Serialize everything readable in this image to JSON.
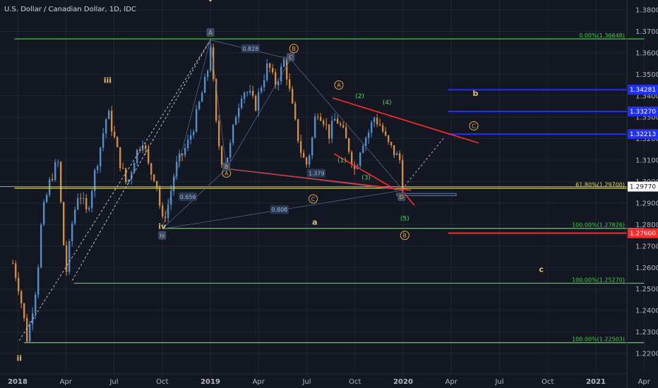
{
  "header": {
    "title": "U.S. Dollar / Canadian Dollar, 1D, IDC"
  },
  "colors": {
    "background": "#131722",
    "up": "#4e8fd0",
    "down": "#d98a3a",
    "green": "#3fcf3f",
    "yellow": "#e7e03a",
    "red": "#ff2b2b",
    "blue": "#1f2fff",
    "grid": "#1f2433"
  },
  "chart_data": {
    "type": "line",
    "title": "U.S. Dollar / Canadian Dollar, 1D, IDC",
    "xlabel": "",
    "ylabel": "",
    "ylim": [
      1.215,
      1.385
    ],
    "y_ticks": [
      1.22,
      1.23,
      1.24,
      1.25,
      1.26,
      1.27,
      1.28,
      1.29,
      1.3,
      1.31,
      1.32,
      1.33,
      1.34,
      1.35,
      1.36,
      1.37,
      1.38
    ],
    "y_tick_labels": [
      "1.22000",
      "1.23000",
      "1.24000",
      "1.25000",
      "1.26000",
      "1.27000",
      "1.28000",
      "1.29000",
      "1.30000",
      "1.31000",
      "1.32000",
      "1.33000",
      "1.34000",
      "1.35000",
      "1.36000",
      "1.37000",
      "1.38000"
    ],
    "x_ticks": [
      {
        "m": 0,
        "label": "2018"
      },
      {
        "m": 3,
        "label": "Apr"
      },
      {
        "m": 6,
        "label": "Jul"
      },
      {
        "m": 9,
        "label": "Oct"
      },
      {
        "m": 12,
        "label": "2019"
      },
      {
        "m": 15,
        "label": "Apr"
      },
      {
        "m": 18,
        "label": "Jul"
      },
      {
        "m": 21,
        "label": "Oct"
      },
      {
        "m": 24,
        "label": "2020"
      },
      {
        "m": 27,
        "label": "Apr"
      },
      {
        "m": 30,
        "label": "Jul"
      },
      {
        "m": 33,
        "label": "Oct"
      },
      {
        "m": 36,
        "label": "2021"
      },
      {
        "m": 39,
        "label": "Apr"
      }
    ],
    "series": [
      {
        "x": [
          -0.3,
          0.1,
          0.6,
          1.2,
          1.5,
          2.0,
          2.5,
          3.0,
          3.4,
          3.8,
          4.3,
          4.8,
          5.2,
          5.6,
          5.9,
          6.3,
          6.8,
          7.3,
          7.8,
          8.2,
          8.6,
          9.0,
          9.4,
          9.8,
          10.2,
          10.6,
          11.0,
          11.4,
          11.8,
          12.0,
          12.4,
          12.8,
          13.2,
          13.6,
          14.0,
          14.4,
          14.8,
          15.2,
          15.6,
          16.0,
          16.4,
          16.6,
          16.9,
          17.3,
          17.7,
          18.0,
          18.3,
          18.6,
          19.0,
          19.4,
          19.8,
          20.2,
          20.6,
          21.0,
          21.4,
          21.8,
          22.2,
          22.6,
          23.0,
          23.4,
          23.8,
          24.0
        ],
        "values": [
          1.262,
          1.25,
          1.226,
          1.254,
          1.283,
          1.3,
          1.31,
          1.256,
          1.281,
          1.296,
          1.285,
          1.304,
          1.318,
          1.333,
          1.324,
          1.311,
          1.298,
          1.312,
          1.32,
          1.305,
          1.302,
          1.281,
          1.29,
          1.306,
          1.312,
          1.318,
          1.327,
          1.339,
          1.35,
          1.365,
          1.322,
          1.307,
          1.315,
          1.332,
          1.343,
          1.341,
          1.335,
          1.346,
          1.355,
          1.345,
          1.352,
          1.357,
          1.343,
          1.326,
          1.312,
          1.308,
          1.318,
          1.334,
          1.33,
          1.322,
          1.33,
          1.324,
          1.316,
          1.305,
          1.318,
          1.322,
          1.33,
          1.326,
          1.318,
          1.314,
          1.31,
          1.296
        ]
      }
    ],
    "fib_levels": [
      {
        "value": 1.36648,
        "label": "0.00%(1.36648)",
        "color": "#3fcf3f",
        "m0": -0.2,
        "m1": 39.0
      },
      {
        "value": 1.297,
        "label": "61.80%(1.29700)",
        "color": "#e7e03a",
        "m0": -0.2,
        "m1": 39.0
      },
      {
        "value": 1.27826,
        "label": "100.00%(1.27826)",
        "color": "#3fcf3f",
        "m0": 9.0,
        "m1": 39.0
      },
      {
        "value": 1.2527,
        "label": "100.00%(1.25270)",
        "color": "#3fcf3f",
        "m0": 3.5,
        "m1": 39.0
      },
      {
        "value": 1.22503,
        "label": "100.00%(1.22503)",
        "color": "#3fcf3f",
        "m0": 0.4,
        "m1": 39.0
      }
    ],
    "target_levels": [
      {
        "value": 1.34281,
        "label": "1.34281",
        "color": "#1f2fff",
        "m0": 26.8,
        "m1": 39.0
      },
      {
        "value": 1.3327,
        "label": "1.33270",
        "color": "#1f2fff",
        "m0": 26.8,
        "m1": 39.0
      },
      {
        "value": 1.32213,
        "label": "1.32213",
        "color": "#1f2fff",
        "m0": 26.8,
        "m1": 39.0
      },
      {
        "value": 1.276,
        "label": "1.27600",
        "color": "#ff2b2b",
        "m0": 26.8,
        "m1": 39.0
      }
    ],
    "current_price": {
      "value": 1.2977,
      "label": "1.29770"
    },
    "annotations": {
      "major_waves": [
        {
          "text": "v",
          "m": 12.0,
          "y": 1.384
        },
        {
          "text": "iii",
          "m": 5.6,
          "y": 1.346
        },
        {
          "text": "iv",
          "m": 9.0,
          "y": 1.278
        },
        {
          "text": "ii",
          "m": 0.1,
          "y": 1.2165
        },
        {
          "text": "a",
          "m": 18.5,
          "y": 1.28
        },
        {
          "text": "b",
          "m": 28.5,
          "y": 1.34
        },
        {
          "text": "c",
          "m": 32.6,
          "y": 1.258
        }
      ],
      "minor_waves": [
        {
          "text": "(1)",
          "m": 20.2,
          "y": 1.309
        },
        {
          "text": "(2)",
          "m": 21.3,
          "y": 1.339
        },
        {
          "text": "(3)",
          "m": 21.7,
          "y": 1.301
        },
        {
          "text": "(4)",
          "m": 23.0,
          "y": 1.336
        },
        {
          "text": "(5)",
          "m": 24.1,
          "y": 1.282
        }
      ],
      "circled": [
        {
          "text": "B",
          "m": 17.2,
          "y": 1.362
        },
        {
          "text": "A",
          "m": 13.0,
          "y": 1.304
        },
        {
          "text": "A",
          "m": 20.0,
          "y": 1.345
        },
        {
          "text": "C",
          "m": 18.4,
          "y": 1.292
        },
        {
          "text": "C",
          "m": 28.4,
          "y": 1.326
        },
        {
          "text": "B",
          "m": 24.1,
          "y": 1.275
        }
      ],
      "boxed": [
        {
          "text": "A",
          "m": 12.0,
          "y": 1.3695
        },
        {
          "text": "B",
          "m": 13.0,
          "y": 1.307
        },
        {
          "text": "C",
          "m": 17.0,
          "y": 1.358
        },
        {
          "text": "D",
          "m": 23.9,
          "y": 1.293
        },
        {
          "text": "iv",
          "m": 9.0,
          "y": 1.275
        }
      ],
      "ratios": [
        {
          "text": "0.828",
          "m": 14.5,
          "y": 1.362
        },
        {
          "text": "0.656",
          "m": 10.6,
          "y": 1.293
        },
        {
          "text": "0.808",
          "m": 16.3,
          "y": 1.287
        },
        {
          "text": "1.379",
          "m": 18.6,
          "y": 1.304
        }
      ]
    }
  }
}
